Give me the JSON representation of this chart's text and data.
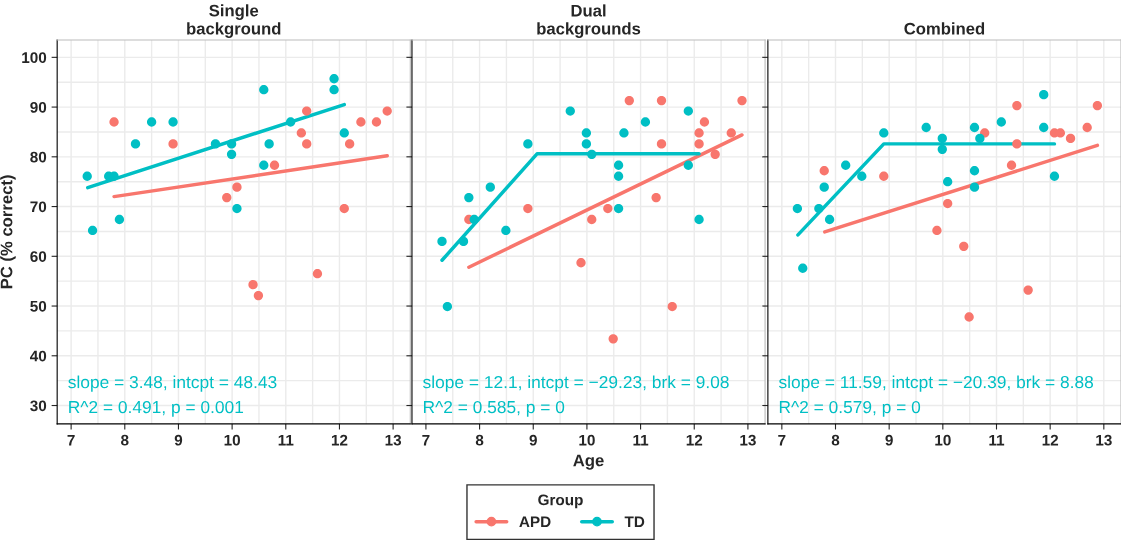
{
  "chart_data": [
    {
      "type": "scatter",
      "title": "Single\nbackground",
      "ylabel": "PC (% correct)",
      "xlim": [
        6.74,
        13.32
      ],
      "ylim": [
        26.3,
        103.5
      ],
      "xticks": [
        7,
        8,
        9,
        10,
        11,
        12,
        13
      ],
      "yticks": [
        30,
        40,
        50,
        60,
        70,
        80,
        90,
        100
      ],
      "grid": true,
      "legend": "bottom",
      "legend_title": "Group",
      "annotations": [
        "slope = 3.48, intcpt = 48.43",
        "R^2 = 0.491, p = 0.001"
      ],
      "series": [
        {
          "name": "APD",
          "color": "#f8766d",
          "marker": "circle",
          "x": [
            7.8,
            8.9,
            9.9,
            10.09,
            10.39,
            10.49,
            10.79,
            11.29,
            11.39,
            11.39,
            11.59,
            12.09,
            12.19,
            12.4,
            12.69,
            12.89
          ],
          "values": [
            87.0,
            82.6,
            71.8,
            73.9,
            54.3,
            52.1,
            78.3,
            84.8,
            89.2,
            82.6,
            56.5,
            69.6,
            82.6,
            87.0,
            87.0,
            89.2
          ]
        },
        {
          "name": "TD",
          "color": "#00bfc4",
          "marker": "circle",
          "x": [
            7.3,
            7.4,
            7.7,
            7.8,
            7.9,
            8.2,
            8.5,
            8.9,
            9.69,
            9.99,
            9.99,
            10.09,
            10.59,
            10.59,
            10.69,
            11.09,
            11.9,
            11.9,
            12.09
          ],
          "values": [
            76.1,
            65.2,
            76.1,
            76.1,
            67.4,
            82.6,
            87.0,
            87.0,
            82.6,
            82.6,
            80.5,
            69.6,
            93.5,
            78.3,
            82.6,
            87.0,
            95.7,
            93.5,
            84.8
          ]
        },
        {
          "type": "line",
          "color": "#f8766d",
          "x": [
            7.8,
            12.89
          ],
          "values": [
            72.0,
            80.2
          ]
        },
        {
          "type": "line",
          "color": "#00bfc4",
          "x": [
            7.31,
            12.09
          ],
          "values": [
            73.8,
            90.5
          ]
        }
      ]
    },
    {
      "type": "scatter",
      "title": "Dual\nbackgrounds",
      "xlabel": "Age",
      "xlim": [
        6.74,
        13.32
      ],
      "ylim": [
        26.3,
        103.5
      ],
      "xticks": [
        7,
        8,
        9,
        10,
        11,
        12,
        13
      ],
      "yticks": [
        30,
        40,
        50,
        60,
        70,
        80,
        90,
        100
      ],
      "grid": true,
      "tick_labels": "x",
      "annotations": [
        "slope = 12.1, intcpt = −29.23, brk = 9.08",
        "R^2 = 0.585, p = 0"
      ],
      "series": [
        {
          "name": "APD",
          "color": "#f8766d",
          "marker": "circle",
          "x": [
            7.8,
            8.9,
            9.89,
            10.09,
            10.39,
            10.49,
            10.79,
            11.29,
            11.39,
            11.39,
            11.59,
            12.09,
            12.09,
            12.19,
            12.39,
            12.69,
            12.89
          ],
          "values": [
            67.4,
            69.6,
            58.7,
            67.4,
            69.6,
            43.4,
            91.3,
            71.8,
            91.3,
            82.6,
            49.9,
            84.8,
            82.6,
            87.0,
            80.5,
            84.8,
            91.3
          ]
        },
        {
          "name": "TD",
          "color": "#00bfc4",
          "marker": "circle",
          "x": [
            7.3,
            7.4,
            7.7,
            7.8,
            7.9,
            8.2,
            8.49,
            8.9,
            9.69,
            9.99,
            9.99,
            10.09,
            10.59,
            10.59,
            10.59,
            10.69,
            11.09,
            11.89,
            11.89,
            12.09
          ],
          "values": [
            63.0,
            49.9,
            63.0,
            71.8,
            67.4,
            73.9,
            65.2,
            82.6,
            89.2,
            84.8,
            82.6,
            80.5,
            78.3,
            76.1,
            69.6,
            84.8,
            87.0,
            89.2,
            78.3,
            67.4
          ]
        },
        {
          "type": "line",
          "color": "#f8766d",
          "x": [
            7.8,
            12.89
          ],
          "values": [
            57.8,
            84.4
          ]
        },
        {
          "type": "line",
          "color": "#00bfc4",
          "x": [
            7.3,
            9.07,
            12.09
          ],
          "values": [
            59.2,
            80.6,
            80.6
          ]
        }
      ]
    },
    {
      "type": "scatter",
      "title": "Combined",
      "xlim": [
        6.74,
        13.32
      ],
      "ylim": [
        26.3,
        103.5
      ],
      "xticks": [
        7,
        8,
        9,
        10,
        11,
        12,
        13
      ],
      "yticks": [
        30,
        40,
        50,
        60,
        70,
        80,
        90,
        100
      ],
      "grid": true,
      "tick_labels": "x",
      "annotations": [
        "slope = 11.59, intcpt = −20.39, brk = 8.88",
        "R^2 = 0.579, p = 0"
      ],
      "series": [
        {
          "name": "APD",
          "color": "#f8766d",
          "marker": "circle",
          "x": [
            7.79,
            8.9,
            9.89,
            10.09,
            10.39,
            10.49,
            10.78,
            11.28,
            11.38,
            11.38,
            11.59,
            12.08,
            12.19,
            12.38,
            12.69,
            12.88
          ],
          "values": [
            77.2,
            76.1,
            65.2,
            70.6,
            62.0,
            47.8,
            84.8,
            78.3,
            90.3,
            82.6,
            53.2,
            84.8,
            84.8,
            83.7,
            85.9,
            90.3
          ]
        },
        {
          "name": "TD",
          "color": "#00bfc4",
          "marker": "circle",
          "x": [
            7.29,
            7.39,
            7.69,
            7.79,
            7.89,
            8.19,
            8.49,
            8.9,
            9.69,
            9.99,
            9.99,
            10.09,
            10.59,
            10.59,
            10.59,
            10.69,
            11.09,
            11.88,
            11.88,
            12.08
          ],
          "values": [
            69.6,
            57.6,
            69.6,
            73.9,
            67.4,
            78.3,
            76.1,
            84.8,
            85.9,
            83.7,
            81.5,
            75.0,
            85.9,
            77.2,
            73.9,
            83.7,
            87.0,
            92.5,
            85.9,
            76.1
          ]
        },
        {
          "type": "line",
          "color": "#f8766d",
          "x": [
            7.8,
            12.88
          ],
          "values": [
            64.9,
            82.3
          ]
        },
        {
          "type": "line",
          "color": "#00bfc4",
          "x": [
            7.3,
            8.9,
            12.08
          ],
          "values": [
            64.3,
            82.6,
            82.6
          ]
        }
      ]
    }
  ]
}
